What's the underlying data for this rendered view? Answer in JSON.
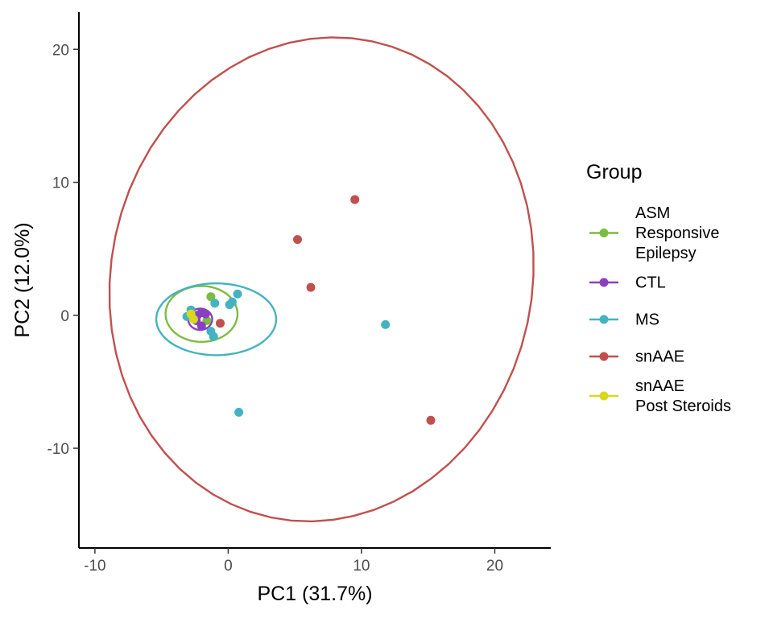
{
  "chart_data": {
    "type": "scatter",
    "xlabel": "PC1 (31.7%)",
    "ylabel": "PC2 (12.0%)",
    "xlim": [
      -11.2,
      24.2
    ],
    "ylim": [
      -17.5,
      22.8
    ],
    "x_ticks": [
      -10,
      0,
      10,
      20
    ],
    "y_ticks": [
      -10,
      0,
      10,
      20
    ],
    "x_tick_labels": [
      "-10",
      "0",
      "10",
      "20"
    ],
    "y_tick_labels": [
      "-10",
      "0",
      "10",
      "20"
    ],
    "grid": false,
    "legend": {
      "title": "Group",
      "position": "right"
    },
    "series": [
      {
        "name": "ASM Responsive Epilepsy",
        "label_lines": [
          "ASM",
          "Responsive",
          "Epilepsy"
        ],
        "color": "#7cbc41",
        "points": [
          [
            -1.3,
            1.4
          ],
          [
            -1.6,
            -0.4
          ]
        ],
        "ellipse": {
          "cx": -2.0,
          "cy": 0.1,
          "rx": 2.7,
          "ry": 2.1,
          "angle_deg": 0
        }
      },
      {
        "name": "CTL",
        "label_lines": [
          "CTL"
        ],
        "color": "#8a3fc0",
        "points": [
          [
            -2.3,
            0.0
          ],
          [
            -2.0,
            0.2
          ],
          [
            -2.4,
            -0.4
          ],
          [
            -2.0,
            -0.8
          ],
          [
            -1.7,
            0.1
          ]
        ],
        "ellipse": {
          "cx": -2.1,
          "cy": -0.3,
          "rx": 0.9,
          "ry": 0.8,
          "angle_deg": 0
        }
      },
      {
        "name": "MS",
        "label_lines": [
          "MS"
        ],
        "color": "#45b2c1",
        "points": [
          [
            -2.8,
            0.4
          ],
          [
            -3.1,
            -0.1
          ],
          [
            -1.0,
            0.9
          ],
          [
            0.1,
            0.8
          ],
          [
            0.3,
            1.0
          ],
          [
            0.7,
            1.6
          ],
          [
            -1.3,
            -1.2
          ],
          [
            -1.1,
            -1.6
          ],
          [
            11.8,
            -0.7
          ],
          [
            0.8,
            -7.3
          ]
        ],
        "ellipse": {
          "cx": -0.9,
          "cy": -0.3,
          "rx": 4.5,
          "ry": 2.7,
          "angle_deg": 0
        }
      },
      {
        "name": "snAAE",
        "label_lines": [
          "snAAE"
        ],
        "color": "#c0504d",
        "points": [
          [
            9.5,
            8.7
          ],
          [
            5.2,
            5.7
          ],
          [
            6.2,
            2.1
          ],
          [
            -0.6,
            -0.6
          ],
          [
            15.2,
            -7.9
          ]
        ],
        "ellipse": {
          "cx": 7.0,
          "cy": 2.7,
          "rx": 15.8,
          "ry": 18.3,
          "angle_deg": -12
        }
      },
      {
        "name": "snAAE Post Steroids",
        "label_lines": [
          "snAAE",
          "Post Steroids"
        ],
        "color": "#d8d81f",
        "points": [
          [
            -2.6,
            -0.3
          ],
          [
            -2.8,
            0.1
          ]
        ],
        "ellipse": null
      }
    ]
  }
}
